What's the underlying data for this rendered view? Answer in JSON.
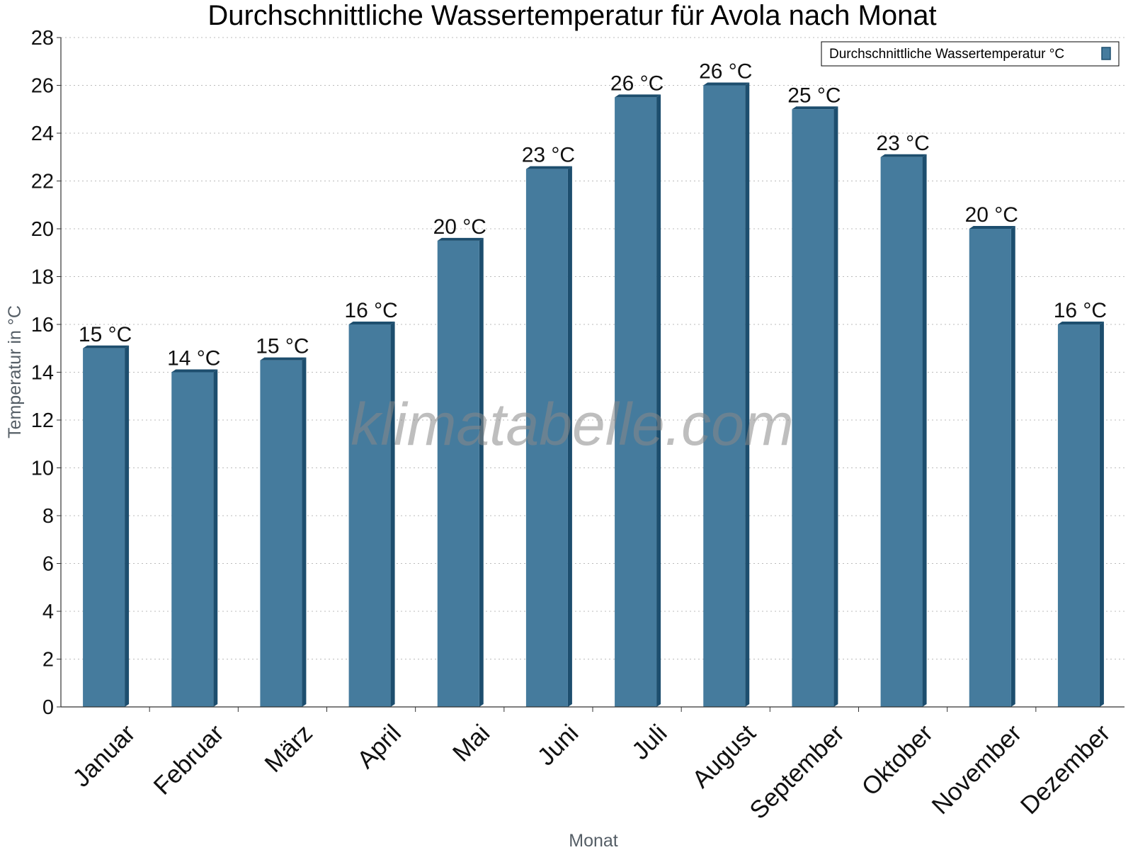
{
  "chart_data": {
    "type": "bar",
    "title": "Durchschnittliche Wassertemperatur für Avola nach Monat",
    "xlabel": "Monat",
    "ylabel": "Temperatur in °C",
    "ylim": [
      0,
      28
    ],
    "yticks": [
      0,
      2,
      4,
      6,
      8,
      10,
      12,
      14,
      16,
      18,
      20,
      22,
      24,
      26,
      28
    ],
    "grid": "horizontal dotted",
    "legend_position": "top-right",
    "categories": [
      "Januar",
      "Februar",
      "März",
      "April",
      "Mai",
      "Juni",
      "Juli",
      "August",
      "September",
      "Oktober",
      "November",
      "Dezember"
    ],
    "series": [
      {
        "name": "Durchschnittliche Wassertemperatur °C",
        "values": [
          15,
          14,
          14.5,
          16,
          19.5,
          22.5,
          25.5,
          26,
          25,
          23,
          20,
          16
        ],
        "labels": [
          "15 °C",
          "14 °C",
          "15 °C",
          "16 °C",
          "20 °C",
          "23 °C",
          "26 °C",
          "26 °C",
          "25 °C",
          "23 °C",
          "20 °C",
          "16 °C"
        ],
        "color": "#457b9d",
        "edge_color": "#1d4e6e"
      }
    ],
    "watermark": "klimatabelle.com"
  }
}
